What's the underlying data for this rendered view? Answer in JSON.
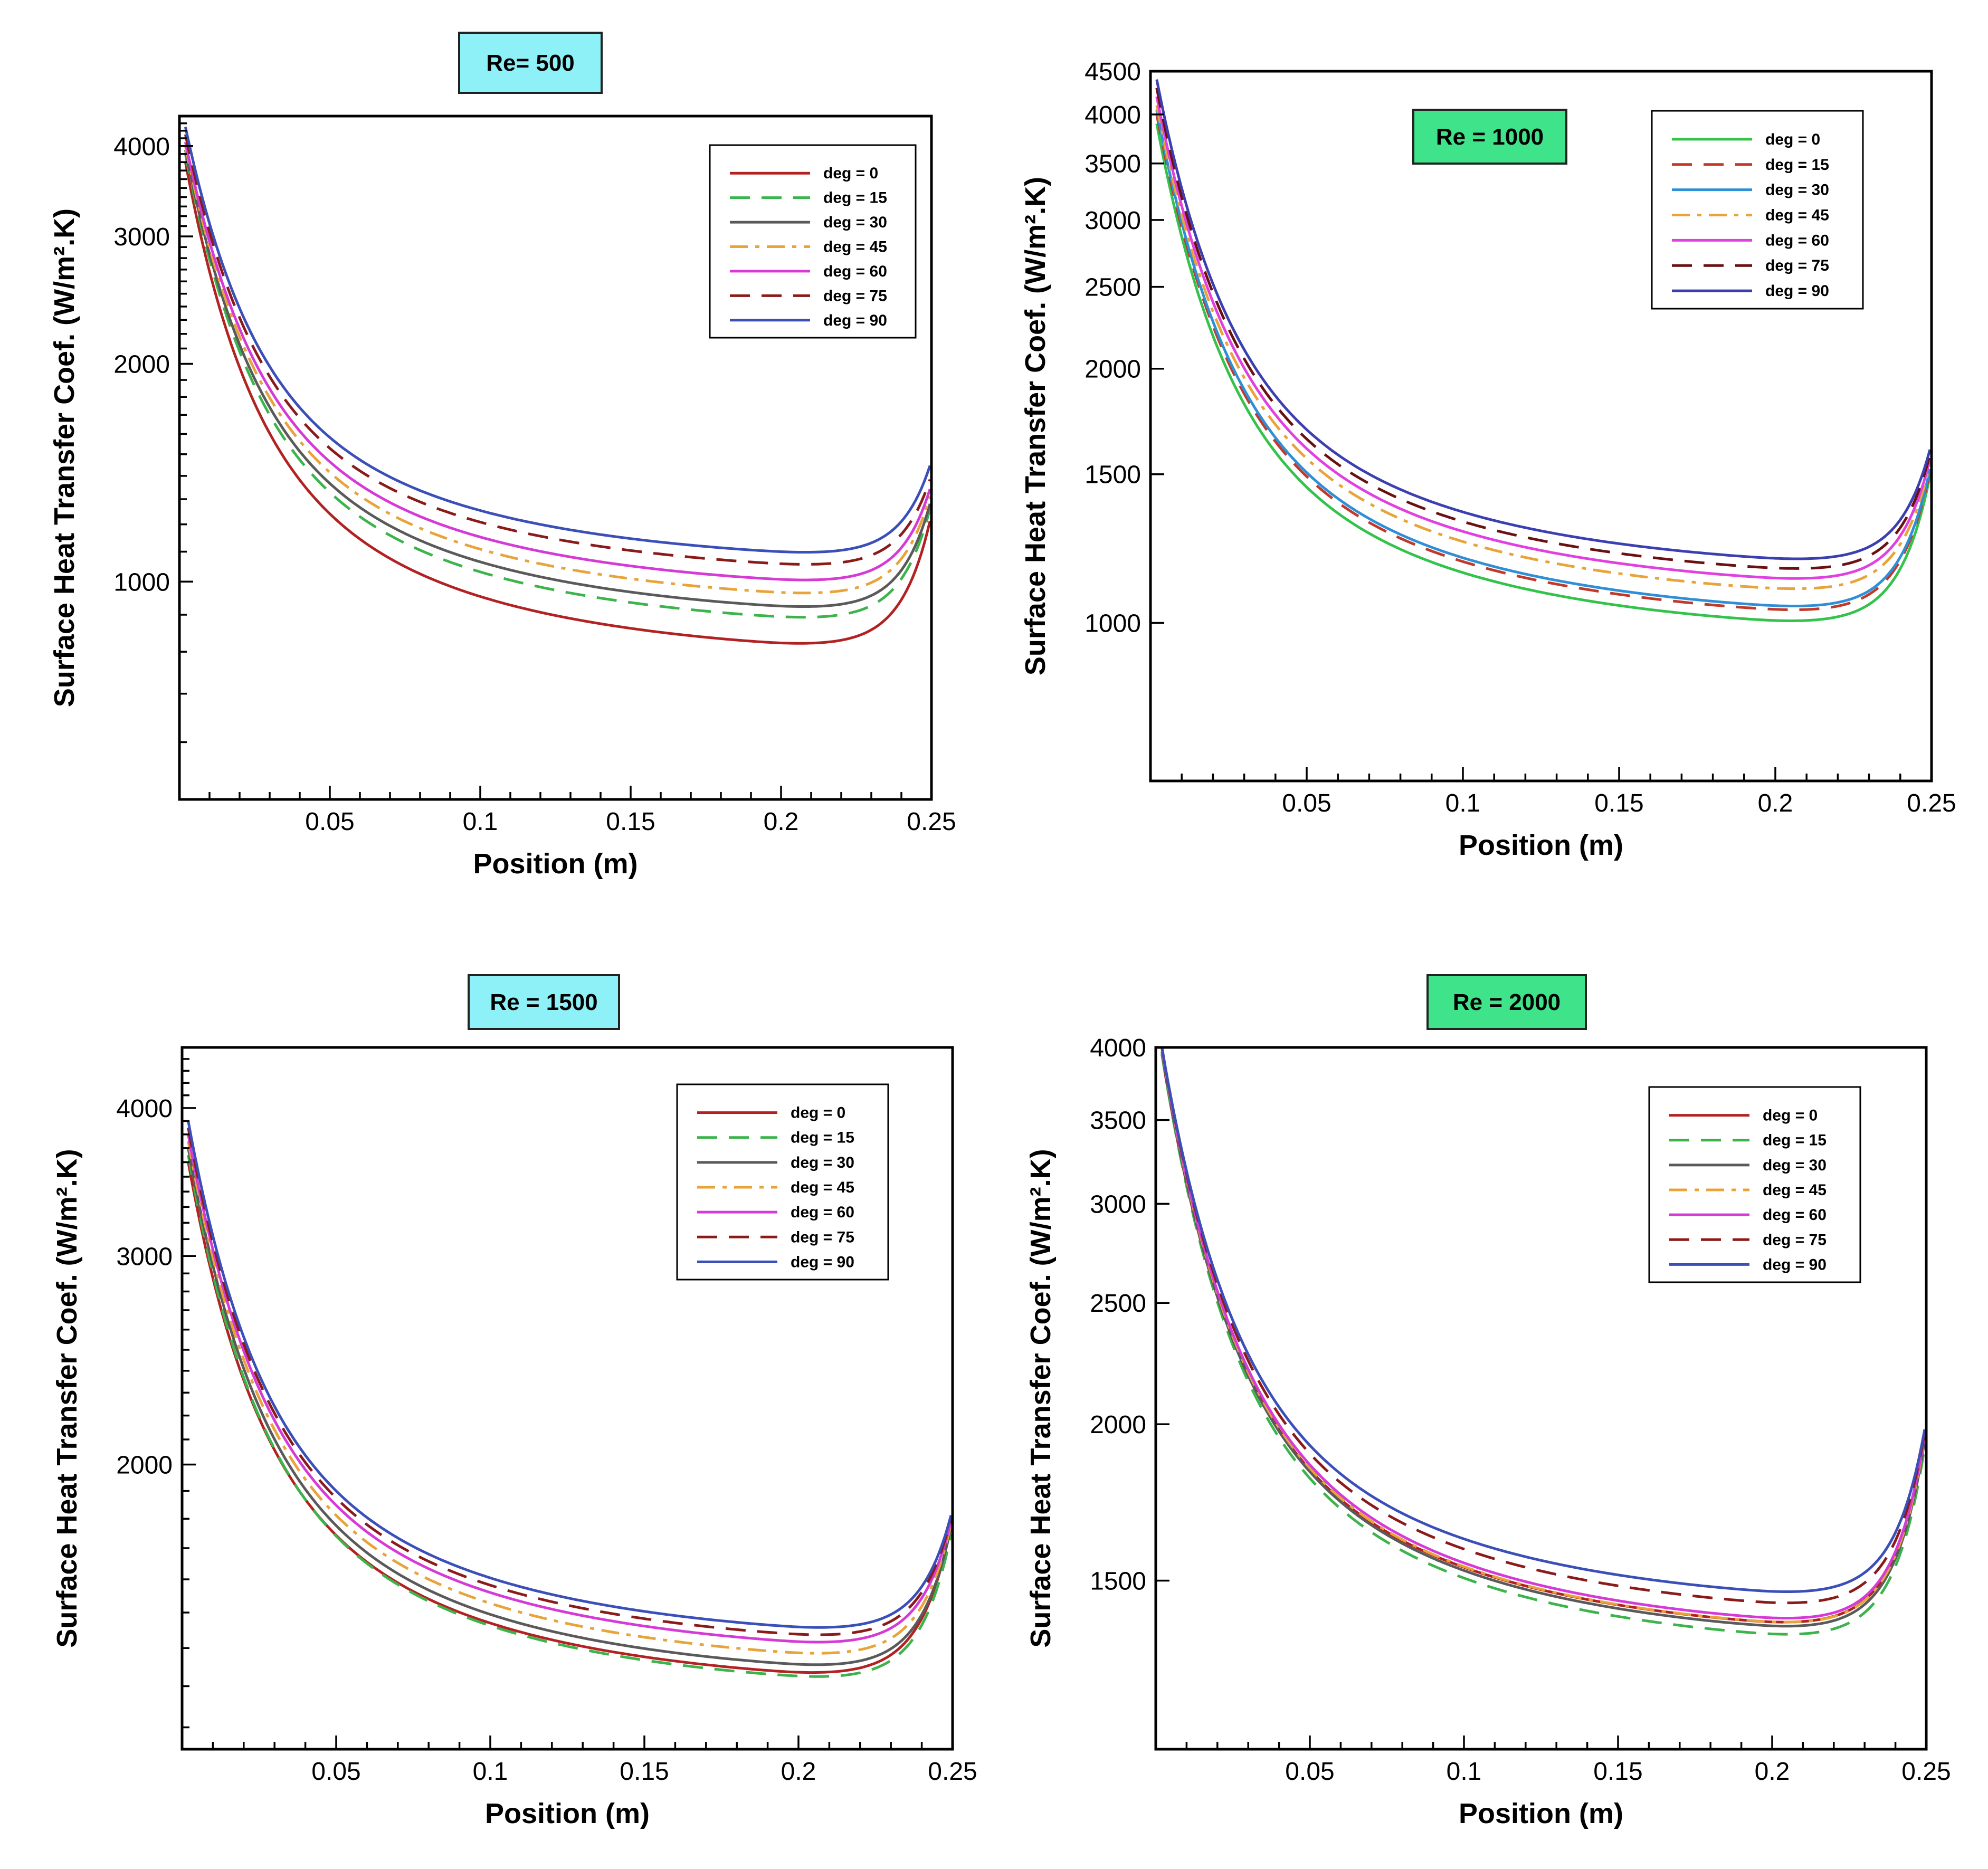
{
  "styles": {
    "deg = 0": {
      "color": "#b22222",
      "dash": "solid"
    },
    "deg = 15": {
      "color": "#3cb44b",
      "dash": "dashed"
    },
    "deg = 30": {
      "color": "#5a5a5a",
      "dash": "solid"
    },
    "deg = 45": {
      "color": "#e8a33a",
      "dash": "dashdot"
    },
    "deg = 60": {
      "color": "#d63ad6",
      "dash": "solid"
    },
    "deg = 75": {
      "color": "#8b1a1a",
      "dash": "dashed"
    },
    "deg = 90": {
      "color": "#3b4fb8",
      "dash": "solid"
    }
  },
  "styles_re1000": {
    "deg = 0": {
      "color": "#33c24a",
      "dash": "solid"
    },
    "deg = 15": {
      "color": "#c0392b",
      "dash": "dashed"
    },
    "deg = 30": {
      "color": "#2e8fd6",
      "dash": "solid"
    },
    "deg = 45": {
      "color": "#e8a33a",
      "dash": "dashdot"
    },
    "deg = 60": {
      "color": "#e040e0",
      "dash": "solid"
    },
    "deg = 75": {
      "color": "#6b1010",
      "dash": "dashed"
    },
    "deg = 90": {
      "color": "#3b3fb0",
      "dash": "solid"
    }
  },
  "chart_data": [
    {
      "type": "line",
      "re_label": "Re= 500",
      "re_label_color": "#8ff1f8",
      "xlabel": "Position (m)",
      "ylabel": "Surface Heat Transfer Coef. (W/m².K)",
      "xlim": [
        0.0,
        0.25
      ],
      "ylim": [
        500,
        4400
      ],
      "yscale": "log",
      "xticks": [
        0.05,
        0.1,
        0.15,
        0.2,
        0.25
      ],
      "xtick_labels": [
        "0.05",
        "0.1",
        "0.15",
        "0.2",
        "0.25"
      ],
      "yticks": [
        1000,
        2000,
        3000,
        4000
      ],
      "ytick_labels": [
        "1000",
        "2000",
        "3000",
        "4000"
      ],
      "legend_position": "top-right",
      "series": [
        {
          "name": "deg = 0",
          "h0": 3800,
          "min": 780,
          "x_min": 0.195,
          "end": 1150
        },
        {
          "name": "deg = 15",
          "h0": 3900,
          "min": 850,
          "x_min": 0.198,
          "end": 1200
        },
        {
          "name": "deg = 30",
          "h0": 3950,
          "min": 880,
          "x_min": 0.198,
          "end": 1220
        },
        {
          "name": "deg = 45",
          "h0": 4000,
          "min": 920,
          "x_min": 0.198,
          "end": 1250
        },
        {
          "name": "deg = 60",
          "h0": 4050,
          "min": 960,
          "x_min": 0.198,
          "end": 1280
        },
        {
          "name": "deg = 75",
          "h0": 4150,
          "min": 1010,
          "x_min": 0.198,
          "end": 1320
        },
        {
          "name": "deg = 90",
          "h0": 4250,
          "min": 1050,
          "x_min": 0.198,
          "end": 1380
        }
      ]
    },
    {
      "type": "line",
      "re_label": "Re = 1000",
      "re_label_color": "#3fe38a",
      "xlabel": "Position (m)",
      "ylabel": "Surface Heat Transfer Coef. (W/m².K)",
      "xlim": [
        0.0,
        0.25
      ],
      "ylim": [
        650,
        4500
      ],
      "yscale": "log",
      "xticks": [
        0.05,
        0.1,
        0.15,
        0.2,
        0.25
      ],
      "xtick_labels": [
        "0.05",
        "0.1",
        "0.15",
        "0.2",
        "0.25"
      ],
      "yticks": [
        1000,
        1500,
        2000,
        2500,
        3000,
        3500,
        4000,
        4500
      ],
      "ytick_labels": [
        "1000",
        "1500",
        "2000",
        "2500",
        "3000",
        "3500",
        "4000",
        "4500"
      ],
      "legend_position": "top-right",
      "series": [
        {
          "name": "deg = 0",
          "h0": 3900,
          "min": 960,
          "x_min": 0.195,
          "end": 1420
        },
        {
          "name": "deg = 15",
          "h0": 4000,
          "min": 990,
          "x_min": 0.197,
          "end": 1440
        },
        {
          "name": "deg = 30",
          "h0": 4050,
          "min": 1000,
          "x_min": 0.197,
          "end": 1450
        },
        {
          "name": "deg = 45",
          "h0": 4100,
          "min": 1050,
          "x_min": 0.197,
          "end": 1470
        },
        {
          "name": "deg = 60",
          "h0": 4200,
          "min": 1080,
          "x_min": 0.197,
          "end": 1490
        },
        {
          "name": "deg = 75",
          "h0": 4300,
          "min": 1110,
          "x_min": 0.197,
          "end": 1510
        },
        {
          "name": "deg = 90",
          "h0": 4400,
          "min": 1140,
          "x_min": 0.197,
          "end": 1530
        }
      ]
    },
    {
      "type": "line",
      "re_label": "Re = 1500",
      "re_label_color": "#8ff1f8",
      "xlabel": "Position (m)",
      "ylabel": "Surface Heat Transfer Coef. (W/m².K)",
      "xlim": [
        0.0,
        0.25
      ],
      "ylim": [
        1150,
        4500
      ],
      "yscale": "log",
      "xticks": [
        0.05,
        0.1,
        0.15,
        0.2,
        0.25
      ],
      "xtick_labels": [
        "0.05",
        "0.1",
        "0.15",
        "0.2",
        "0.25"
      ],
      "yticks": [
        2000,
        3000,
        4000
      ],
      "ytick_labels": [
        "2000",
        "3000",
        "4000"
      ],
      "legend_position": "top-right",
      "series": [
        {
          "name": "deg = 0",
          "h0": 3600,
          "min": 1290,
          "x_min": 0.195,
          "end": 1700
        },
        {
          "name": "deg = 15",
          "h0": 3650,
          "min": 1280,
          "x_min": 0.2,
          "end": 1680
        },
        {
          "name": "deg = 30",
          "h0": 3700,
          "min": 1310,
          "x_min": 0.198,
          "end": 1700
        },
        {
          "name": "deg = 45",
          "h0": 3750,
          "min": 1340,
          "x_min": 0.198,
          "end": 1710
        },
        {
          "name": "deg = 60",
          "h0": 3800,
          "min": 1370,
          "x_min": 0.198,
          "end": 1720
        },
        {
          "name": "deg = 75",
          "h0": 3850,
          "min": 1390,
          "x_min": 0.198,
          "end": 1730
        },
        {
          "name": "deg = 90",
          "h0": 3900,
          "min": 1410,
          "x_min": 0.198,
          "end": 1740
        }
      ]
    },
    {
      "type": "line",
      "re_label": "Re = 2000",
      "re_label_color": "#3fe38a",
      "xlabel": "Position (m)",
      "ylabel": "Surface Heat Transfer Coef. (W/m².K)",
      "xlim": [
        0.0,
        0.25
      ],
      "ylim": [
        1100,
        4000
      ],
      "yscale": "log",
      "xticks": [
        0.05,
        0.1,
        0.15,
        0.2,
        0.25
      ],
      "xtick_labels": [
        "0.05",
        "0.1",
        "0.15",
        "0.2",
        "0.25"
      ],
      "yticks": [
        1500,
        2000,
        2500,
        3000,
        3500,
        4000
      ],
      "ytick_labels": [
        "1500",
        "2000",
        "2500",
        "3000",
        "3500",
        "4000"
      ],
      "legend_position": "top-right",
      "series": [
        {
          "name": "deg = 0",
          "h0": 3950,
          "min": 1340,
          "x_min": 0.195,
          "end": 1870
        },
        {
          "name": "deg = 15",
          "h0": 3950,
          "min": 1310,
          "x_min": 0.198,
          "end": 1840
        },
        {
          "name": "deg = 30",
          "h0": 3970,
          "min": 1330,
          "x_min": 0.197,
          "end": 1860
        },
        {
          "name": "deg = 45",
          "h0": 3990,
          "min": 1340,
          "x_min": 0.197,
          "end": 1870
        },
        {
          "name": "deg = 60",
          "h0": 4000,
          "min": 1350,
          "x_min": 0.197,
          "end": 1880
        },
        {
          "name": "deg = 75",
          "h0": 4000,
          "min": 1390,
          "x_min": 0.197,
          "end": 1890
        },
        {
          "name": "deg = 90",
          "h0": 4000,
          "min": 1420,
          "x_min": 0.197,
          "end": 1900
        }
      ]
    }
  ]
}
